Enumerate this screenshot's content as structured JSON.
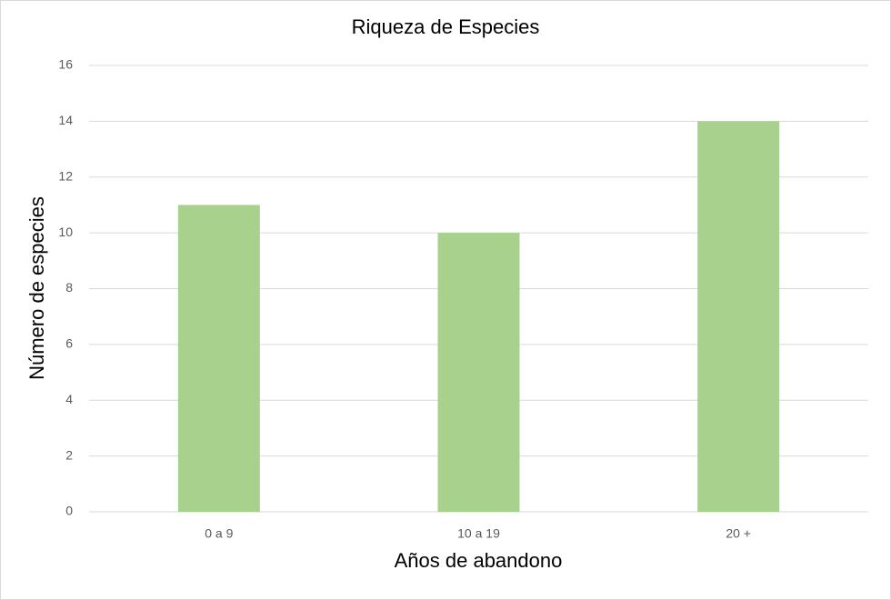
{
  "chart_data": {
    "type": "bar",
    "title": "Riqueza de Especies",
    "x_label": "Años de abandono",
    "y_label": "Número de especies",
    "categories": [
      "0 a 9",
      "10 a 19",
      "20 +"
    ],
    "values": [
      11,
      10,
      14
    ],
    "color": "#a9d18e",
    "ylim": [
      0,
      16
    ],
    "yticks": [
      0,
      2,
      4,
      6,
      8,
      10,
      12,
      14,
      16
    ],
    "grid": true
  }
}
